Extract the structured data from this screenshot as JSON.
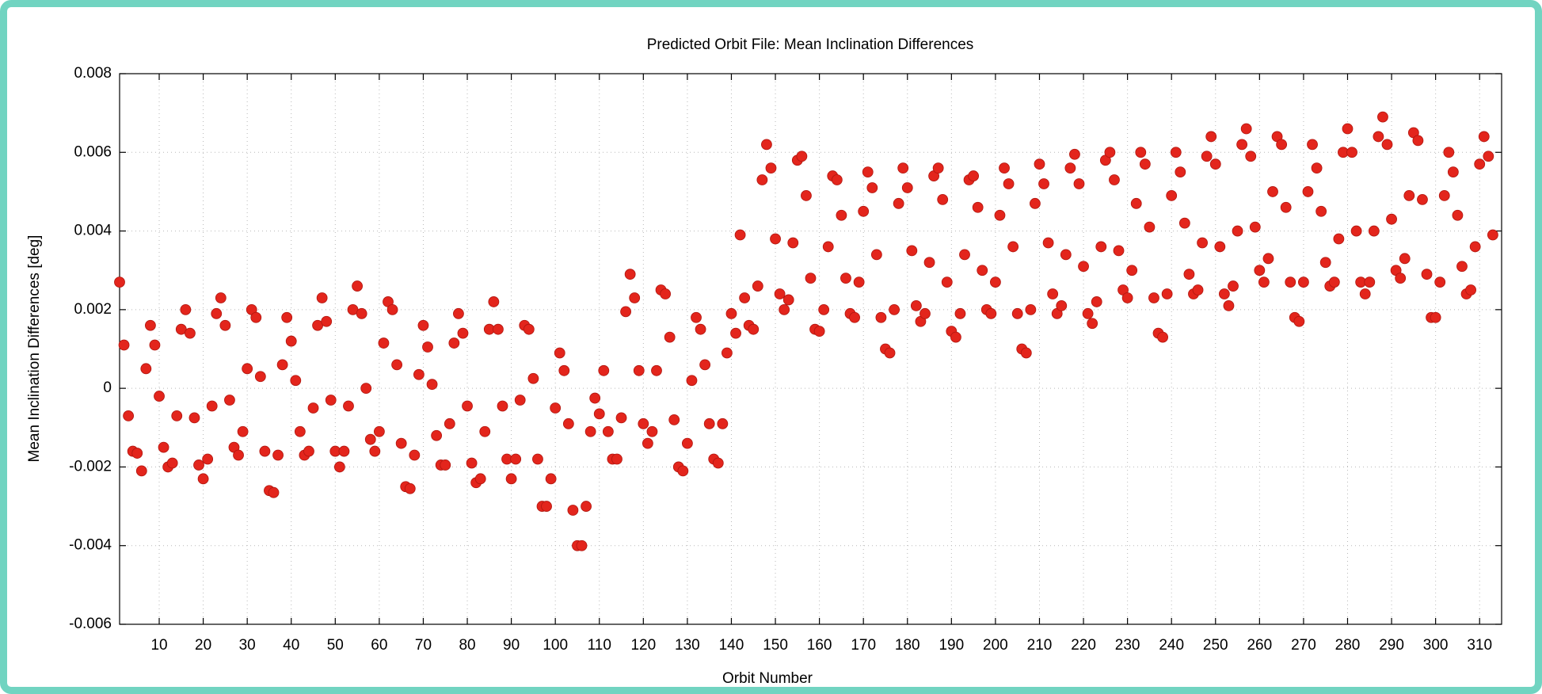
{
  "chart_data": {
    "type": "scatter",
    "title": "Predicted Orbit File: Mean Inclination Differences",
    "x_label": "Orbit Number",
    "y_label": "Mean Inclination Differences [deg]",
    "color": "#e3251c",
    "grid": true,
    "xlim": [
      1,
      315
    ],
    "ylim": [
      -0.006,
      0.008
    ],
    "xticks": [
      10,
      20,
      30,
      40,
      50,
      60,
      70,
      80,
      90,
      100,
      110,
      120,
      130,
      140,
      150,
      160,
      170,
      180,
      190,
      200,
      210,
      220,
      230,
      240,
      250,
      260,
      270,
      280,
      290,
      300,
      310
    ],
    "yticks": [
      -0.006,
      -0.004,
      -0.002,
      0,
      0.002,
      0.004,
      0.006,
      0.008
    ],
    "x": [
      1,
      2,
      3,
      4,
      5,
      6,
      7,
      8,
      9,
      10,
      11,
      12,
      13,
      14,
      15,
      16,
      17,
      18,
      19,
      20,
      21,
      22,
      23,
      24,
      25,
      26,
      27,
      28,
      29,
      30,
      31,
      32,
      33,
      34,
      35,
      36,
      37,
      38,
      39,
      40,
      41,
      42,
      43,
      44,
      45,
      46,
      47,
      48,
      49,
      50,
      51,
      52,
      53,
      54,
      55,
      56,
      57,
      58,
      59,
      60,
      61,
      62,
      63,
      64,
      65,
      66,
      67,
      68,
      69,
      70,
      71,
      72,
      73,
      74,
      75,
      76,
      77,
      78,
      79,
      80,
      81,
      82,
      83,
      84,
      85,
      86,
      87,
      88,
      89,
      90,
      91,
      92,
      93,
      94,
      95,
      96,
      97,
      98,
      99,
      100,
      101,
      102,
      103,
      104,
      105,
      106,
      107,
      108,
      109,
      110,
      111,
      112,
      113,
      114,
      115,
      116,
      117,
      118,
      119,
      120,
      121,
      122,
      123,
      124,
      125,
      126,
      127,
      128,
      129,
      130,
      131,
      132,
      133,
      134,
      135,
      136,
      137,
      138,
      139,
      140,
      141,
      142,
      143,
      144,
      145,
      146,
      147,
      148,
      149,
      150,
      151,
      152,
      153,
      154,
      155,
      156,
      157,
      158,
      159,
      160,
      161,
      162,
      163,
      164,
      165,
      166,
      167,
      168,
      169,
      170,
      171,
      172,
      173,
      174,
      175,
      176,
      177,
      178,
      179,
      180,
      181,
      182,
      183,
      184,
      185,
      186,
      187,
      188,
      189,
      190,
      191,
      192,
      193,
      194,
      195,
      196,
      197,
      198,
      199,
      200,
      201,
      202,
      203,
      204,
      205,
      206,
      207,
      208,
      209,
      210,
      211,
      212,
      213,
      214,
      215,
      216,
      217,
      218,
      219,
      220,
      221,
      222,
      223,
      224,
      225,
      226,
      227,
      228,
      229,
      230,
      231,
      232,
      233,
      234,
      235,
      236,
      237,
      238,
      239,
      240,
      241,
      242,
      243,
      244,
      245,
      246,
      247,
      248,
      249,
      250,
      251,
      252,
      253,
      254,
      255,
      256,
      257,
      258,
      259,
      260,
      261,
      262,
      263,
      264,
      265,
      266,
      267,
      268,
      269,
      270,
      271,
      272,
      273,
      274,
      275,
      276,
      277,
      278,
      279,
      280,
      281,
      282,
      283,
      284,
      285,
      286,
      287,
      288,
      289,
      290,
      291,
      292,
      293,
      294,
      295,
      296,
      297,
      298,
      299,
      300,
      301,
      302,
      303,
      304,
      305,
      306,
      307,
      308,
      309,
      310,
      311,
      312,
      313
    ],
    "values": [
      0.0027,
      0.0011,
      -0.0007,
      -0.0016,
      -0.00165,
      -0.0021,
      0.0005,
      0.0016,
      0.0011,
      -0.0002,
      -0.0015,
      -0.002,
      -0.0019,
      -0.0007,
      0.0015,
      0.002,
      0.0014,
      -0.00075,
      -0.00195,
      -0.0023,
      -0.0018,
      -0.00045,
      0.0019,
      0.0023,
      0.0016,
      -0.0003,
      -0.0015,
      -0.0017,
      -0.0011,
      0.0005,
      0.002,
      0.0018,
      0.0003,
      -0.0016,
      -0.0026,
      -0.00265,
      -0.0017,
      0.0006,
      0.0018,
      0.0012,
      0.0002,
      -0.0011,
      -0.0017,
      -0.0016,
      -0.0005,
      0.0016,
      0.0023,
      0.0017,
      -0.0003,
      -0.0016,
      -0.002,
      -0.0016,
      -0.00045,
      0.002,
      0.0026,
      0.0019,
      0.0,
      -0.0013,
      -0.0016,
      -0.0011,
      0.00115,
      0.0022,
      0.002,
      0.0006,
      -0.0014,
      -0.0025,
      -0.00255,
      -0.0017,
      0.00035,
      0.0016,
      0.00105,
      0.0001,
      -0.0012,
      -0.00195,
      -0.00195,
      -0.0009,
      0.00115,
      0.0019,
      0.0014,
      -0.00045,
      -0.0019,
      -0.0024,
      -0.0023,
      -0.0011,
      0.0015,
      0.0022,
      0.0015,
      -0.00045,
      -0.0018,
      -0.0023,
      -0.0018,
      -0.0003,
      0.0016,
      0.0015,
      0.00025,
      -0.0018,
      -0.003,
      -0.003,
      -0.0023,
      -0.0005,
      0.0009,
      0.00045,
      -0.0009,
      -0.0031,
      -0.004,
      -0.004,
      -0.003,
      -0.0011,
      -0.00025,
      -0.00065,
      0.00045,
      -0.0011,
      -0.0018,
      -0.0018,
      -0.00075,
      0.00195,
      0.0029,
      0.0023,
      0.00045,
      -0.0009,
      -0.0014,
      -0.0011,
      0.00045,
      0.0025,
      0.0024,
      0.0013,
      -0.0008,
      -0.002,
      -0.0021,
      -0.0014,
      0.0002,
      0.0018,
      0.0015,
      0.0006,
      -0.0009,
      -0.0018,
      -0.0019,
      -0.0009,
      0.0009,
      0.0019,
      0.0014,
      0.0039,
      0.0023,
      0.0016,
      0.0015,
      0.0026,
      0.0053,
      0.0062,
      0.0056,
      0.0038,
      0.0024,
      0.002,
      0.00225,
      0.0037,
      0.0058,
      0.0059,
      0.0049,
      0.0028,
      0.0015,
      0.00145,
      0.002,
      0.0036,
      0.0054,
      0.0053,
      0.0044,
      0.0028,
      0.0019,
      0.0018,
      0.0027,
      0.0045,
      0.0055,
      0.0051,
      0.0034,
      0.0018,
      0.001,
      0.0009,
      0.002,
      0.0047,
      0.0056,
      0.0051,
      0.0035,
      0.0021,
      0.0017,
      0.0019,
      0.0032,
      0.0054,
      0.0056,
      0.0048,
      0.0027,
      0.00145,
      0.0013,
      0.0019,
      0.0034,
      0.0053,
      0.0054,
      0.0046,
      0.003,
      0.002,
      0.0019,
      0.0027,
      0.0044,
      0.0056,
      0.0052,
      0.0036,
      0.0019,
      0.001,
      0.0009,
      0.002,
      0.0047,
      0.0057,
      0.0052,
      0.0037,
      0.0024,
      0.0019,
      0.0021,
      0.0034,
      0.0056,
      0.00595,
      0.0052,
      0.0031,
      0.0019,
      0.00165,
      0.0022,
      0.0036,
      0.0058,
      0.006,
      0.0053,
      0.0035,
      0.0025,
      0.0023,
      0.003,
      0.0047,
      0.006,
      0.0057,
      0.0041,
      0.0023,
      0.0014,
      0.0013,
      0.0024,
      0.0049,
      0.006,
      0.0055,
      0.0042,
      0.0029,
      0.0024,
      0.0025,
      0.0037,
      0.0059,
      0.0064,
      0.0057,
      0.0036,
      0.0024,
      0.0021,
      0.0026,
      0.004,
      0.0062,
      0.0066,
      0.0059,
      0.0041,
      0.003,
      0.0027,
      0.0033,
      0.005,
      0.0064,
      0.0062,
      0.0046,
      0.0027,
      0.0018,
      0.0017,
      0.0027,
      0.005,
      0.0062,
      0.0056,
      0.0045,
      0.0032,
      0.0026,
      0.0027,
      0.0038,
      0.006,
      0.0066,
      0.006,
      0.004,
      0.0027,
      0.0024,
      0.0027,
      0.004,
      0.0064,
      0.0069,
      0.0062,
      0.0043,
      0.003,
      0.0028,
      0.0033,
      0.0049,
      0.0065,
      0.0063,
      0.0048,
      0.0029,
      0.0018,
      0.0018,
      0.0027,
      0.0049,
      0.006,
      0.0055,
      0.0044,
      0.0031,
      0.0024,
      0.0025,
      0.0036,
      0.0057,
      0.0064,
      0.0059,
      0.0039
    ]
  }
}
